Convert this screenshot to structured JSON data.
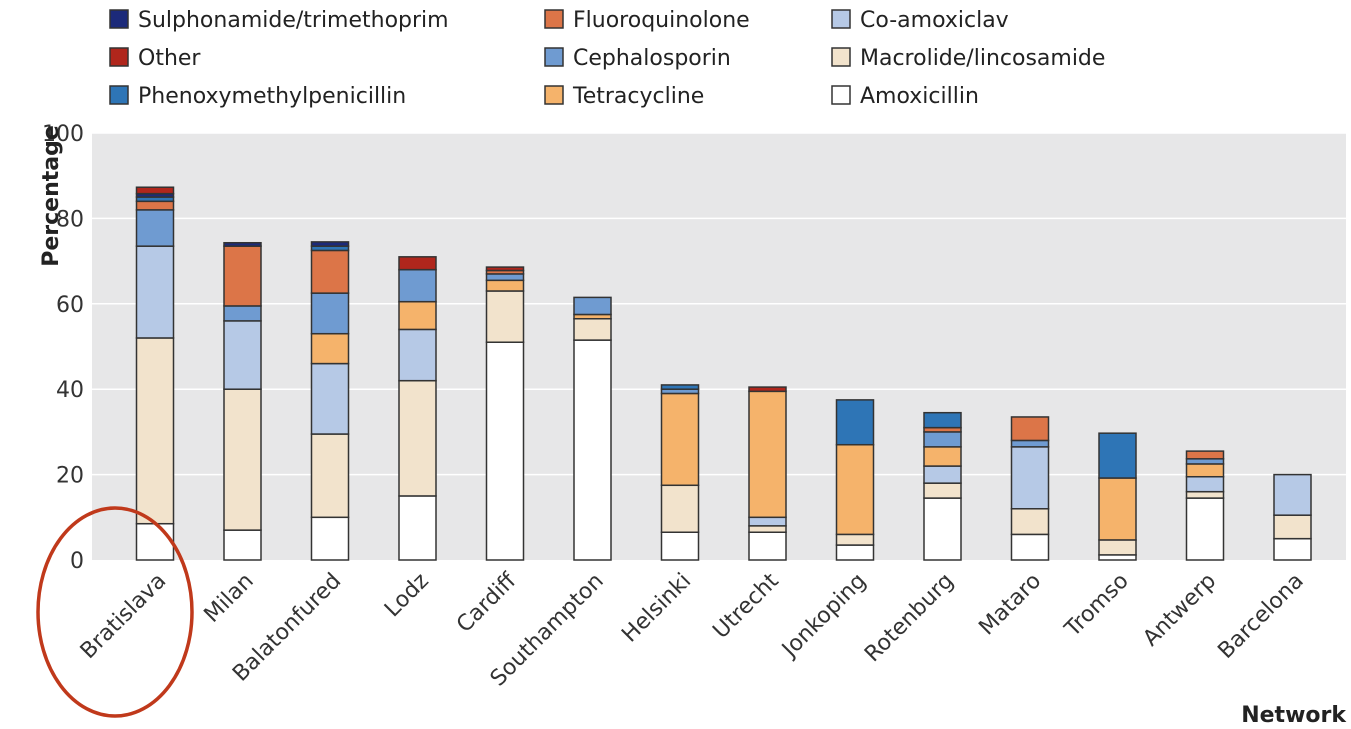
{
  "chart_data": {
    "type": "bar",
    "stacked": true,
    "xlabel": "Network",
    "ylabel": "Percentage",
    "ylim": [
      0,
      100
    ],
    "yticks": [
      0,
      20,
      40,
      60,
      80,
      100
    ],
    "grid": true,
    "legend_position": "top",
    "categories": [
      "Bratislava",
      "Milan",
      "Balatonfured",
      "Lodz",
      "Cardiff",
      "Southampton",
      "Helsinki",
      "Utrecht",
      "Jonkoping",
      "Rotenburg",
      "Mataro",
      "Tromso",
      "Antwerp",
      "Barcelona"
    ],
    "series": [
      {
        "name": "Amoxicillin",
        "color": "#ffffff",
        "values": [
          8.5,
          7,
          10,
          15,
          51,
          51.5,
          6.5,
          6.5,
          3.5,
          14.5,
          6,
          1.2,
          14.5,
          5
        ]
      },
      {
        "name": "Macrolide/lincosamide",
        "color": "#f2e3cc",
        "values": [
          43.5,
          33,
          19.5,
          27,
          12,
          5,
          11,
          1.5,
          2.5,
          3.5,
          6,
          3.5,
          1.5,
          5.5
        ]
      },
      {
        "name": "Tetracycline",
        "color": "#f5b36b",
        "values": [
          0,
          0,
          0,
          0,
          0,
          0,
          0,
          0,
          0,
          0,
          0,
          0,
          0,
          0
        ]
      },
      {
        "name": "Co-amoxiclav",
        "color": "#b6c9e6",
        "values": [
          21.5,
          16,
          16.5,
          12,
          0,
          0,
          0,
          2,
          0,
          4,
          14.5,
          0,
          3.5,
          9.5
        ]
      },
      {
        "name": "Tetracycline",
        "color": "#f5b36b",
        "values": [
          0,
          0,
          7,
          6.5,
          2.5,
          1,
          21.5,
          29.5,
          21,
          4.5,
          0,
          14.5,
          3,
          0
        ]
      },
      {
        "name": "Cephalosporin",
        "color": "#6f9bd1",
        "values": [
          8.5,
          3.5,
          9.5,
          7.5,
          1.5,
          4,
          1,
          0,
          0,
          3.5,
          1.5,
          0,
          1.2,
          0
        ]
      },
      {
        "name": "Fluoroquinolone",
        "color": "#dc7548",
        "values": [
          2,
          14,
          10,
          0,
          0.8,
          0,
          0,
          0,
          0,
          1,
          5.5,
          0,
          1.8,
          0
        ]
      },
      {
        "name": "Phenoxymethylpenicillin",
        "color": "#2e75b6",
        "values": [
          1,
          0,
          1,
          0,
          0,
          0,
          1,
          0,
          10.5,
          3.5,
          0,
          10.5,
          0,
          0
        ]
      },
      {
        "name": "Sulphonamide/trimethoprim",
        "color": "#1c2a7a",
        "values": [
          0.8,
          0.8,
          1,
          0,
          0,
          0,
          0,
          0,
          0,
          0,
          0,
          0,
          0,
          0
        ]
      },
      {
        "name": "Other",
        "color": "#b0261c",
        "values": [
          1.5,
          0,
          0,
          3,
          0.8,
          0,
          0,
          1,
          0,
          0,
          0,
          0,
          0,
          0
        ]
      }
    ],
    "legend": [
      {
        "label": "Sulphonamide/trimethoprim",
        "color": "#1c2a7a"
      },
      {
        "label": "Other",
        "color": "#b0261c"
      },
      {
        "label": "Phenoxymethylpenicillin",
        "color": "#2e75b6"
      },
      {
        "label": "Fluoroquinolone",
        "color": "#dc7548"
      },
      {
        "label": "Cephalosporin",
        "color": "#6f9bd1"
      },
      {
        "label": "Tetracycline",
        "color": "#f5b36b"
      },
      {
        "label": "Co-amoxiclav",
        "color": "#b6c9e6"
      },
      {
        "label": "Macrolide/lincosamide",
        "color": "#f2e3cc"
      },
      {
        "label": "Amoxicillin",
        "color": "#ffffff"
      }
    ],
    "annotation": {
      "type": "ellipse",
      "target": "Bratislava",
      "color": "#c0391b"
    }
  },
  "colors": {
    "plot_background": "#e7e7e8",
    "grid": "#ffffff",
    "bar_stroke": "#333333"
  }
}
